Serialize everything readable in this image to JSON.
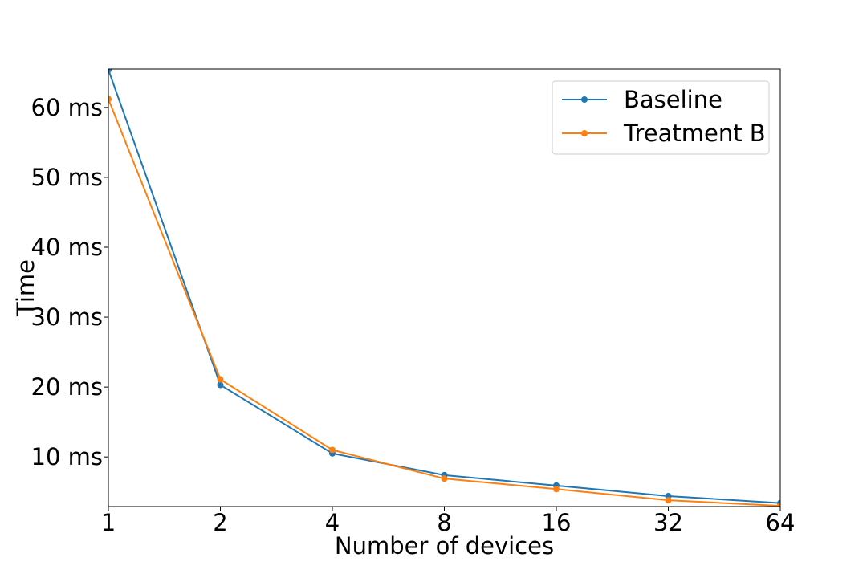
{
  "chart_data": {
    "type": "line",
    "title": "",
    "xlabel": "Number of devices",
    "ylabel": "Time",
    "x_scale": "log2",
    "x": [
      1,
      2,
      4,
      8,
      16,
      32,
      64
    ],
    "x_tick_labels": [
      "1",
      "2",
      "4",
      "8",
      "16",
      "32",
      "64"
    ],
    "y_ticks": [
      10,
      20,
      30,
      40,
      50,
      60
    ],
    "y_tick_labels": [
      "10 ms",
      "20 ms",
      "30 ms",
      "40 ms",
      "50 ms",
      "60 ms"
    ],
    "ylim": [
      2.9,
      65.5
    ],
    "grid": false,
    "legend_position": "top-right",
    "series": [
      {
        "name": "Baseline",
        "color": "#1f77b4",
        "marker": "circle",
        "values": [
          65.4,
          20.3,
          10.5,
          7.4,
          5.9,
          4.4,
          3.4
        ]
      },
      {
        "name": "Treatment B",
        "color": "#ff7f0e",
        "marker": "circle",
        "values": [
          61.2,
          21.1,
          11.0,
          6.9,
          5.4,
          3.8,
          3.0
        ]
      }
    ]
  }
}
